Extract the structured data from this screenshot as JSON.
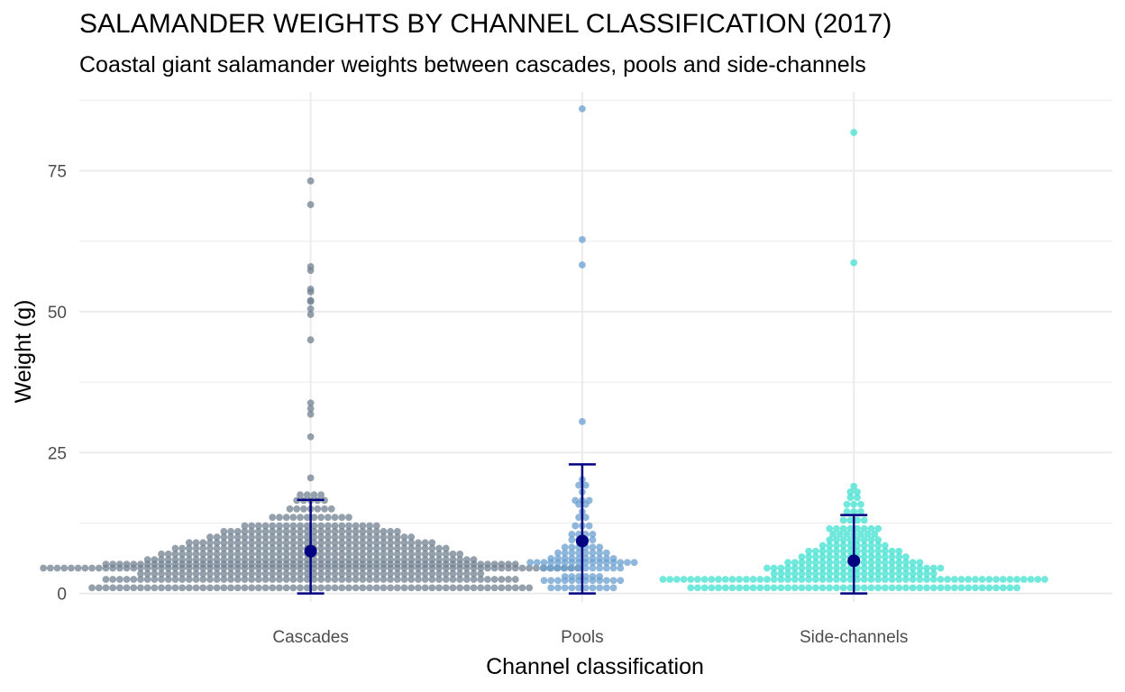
{
  "chart_data": {
    "type": "beeswarm",
    "title": "SALAMANDER WEIGHTS BY CHANNEL CLASSIFICATION (2017)",
    "subtitle": "Coastal giant salamander weights between cascades, pools and side-channels",
    "xlabel": "Channel classification",
    "ylabel": "Weight (g)",
    "categories": [
      "Cascades",
      "Pools",
      "Side-channels"
    ],
    "ylim": [
      -1.5,
      89
    ],
    "yticks": [
      0,
      25,
      50,
      75
    ],
    "grid": true,
    "colors": {
      "Cascades": "#708090",
      "Pools": "#6a9fd0",
      "Side-channels": "#40e0d0",
      "summary": "#000080"
    },
    "summary": [
      {
        "category": "Cascades",
        "mean": 7.5,
        "lower": 0,
        "upper": 16.6
      },
      {
        "category": "Pools",
        "mean": 9.3,
        "lower": 0,
        "upper": 22.9
      },
      {
        "category": "Side-channels",
        "mean": 5.8,
        "lower": 0,
        "upper": 13.9
      }
    ],
    "bins": [
      {
        "category": "Cascades",
        "weights": [
          1,
          2.5,
          3.5,
          4.5,
          5.2,
          6,
          7,
          8,
          9,
          10,
          11,
          12,
          13.5,
          15,
          16.5,
          17.5,
          20.5,
          27.8,
          31.8,
          32.8,
          33.8,
          45,
          49.5,
          50.5,
          51.8,
          52,
          53.5,
          54,
          57.3,
          58,
          69,
          73.2
        ],
        "counts": [
          64,
          60,
          50,
          78,
          60,
          48,
          44,
          40,
          36,
          30,
          26,
          20,
          12,
          7,
          5,
          4,
          1,
          1,
          1,
          1,
          1,
          1,
          1,
          1,
          1,
          1,
          1,
          1,
          1,
          1,
          1,
          1
        ]
      },
      {
        "category": "Pools",
        "weights": [
          1,
          2.3,
          3,
          4.5,
          5.5,
          6.2,
          7.2,
          8.2,
          9.5,
          10.5,
          12,
          13.5,
          14.5,
          15.8,
          16.5,
          18,
          19.2,
          20.2,
          30.5,
          58.3,
          62.8,
          86
        ],
        "counts": [
          10,
          12,
          6,
          12,
          16,
          10,
          8,
          6,
          4,
          4,
          3,
          2,
          1,
          2,
          3,
          1,
          2,
          1,
          1,
          1,
          1,
          1
        ]
      },
      {
        "category": "Side-channels",
        "weights": [
          1,
          2.5,
          3.5,
          4.5,
          5.5,
          6.5,
          7.5,
          8.5,
          9.5,
          10.5,
          11.5,
          13,
          14.5,
          15.8,
          17,
          18,
          19,
          58.7,
          81.8
        ],
        "counts": [
          48,
          56,
          24,
          26,
          20,
          16,
          14,
          10,
          8,
          7,
          8,
          4,
          3,
          3,
          2,
          2,
          1,
          1,
          1
        ]
      }
    ]
  }
}
